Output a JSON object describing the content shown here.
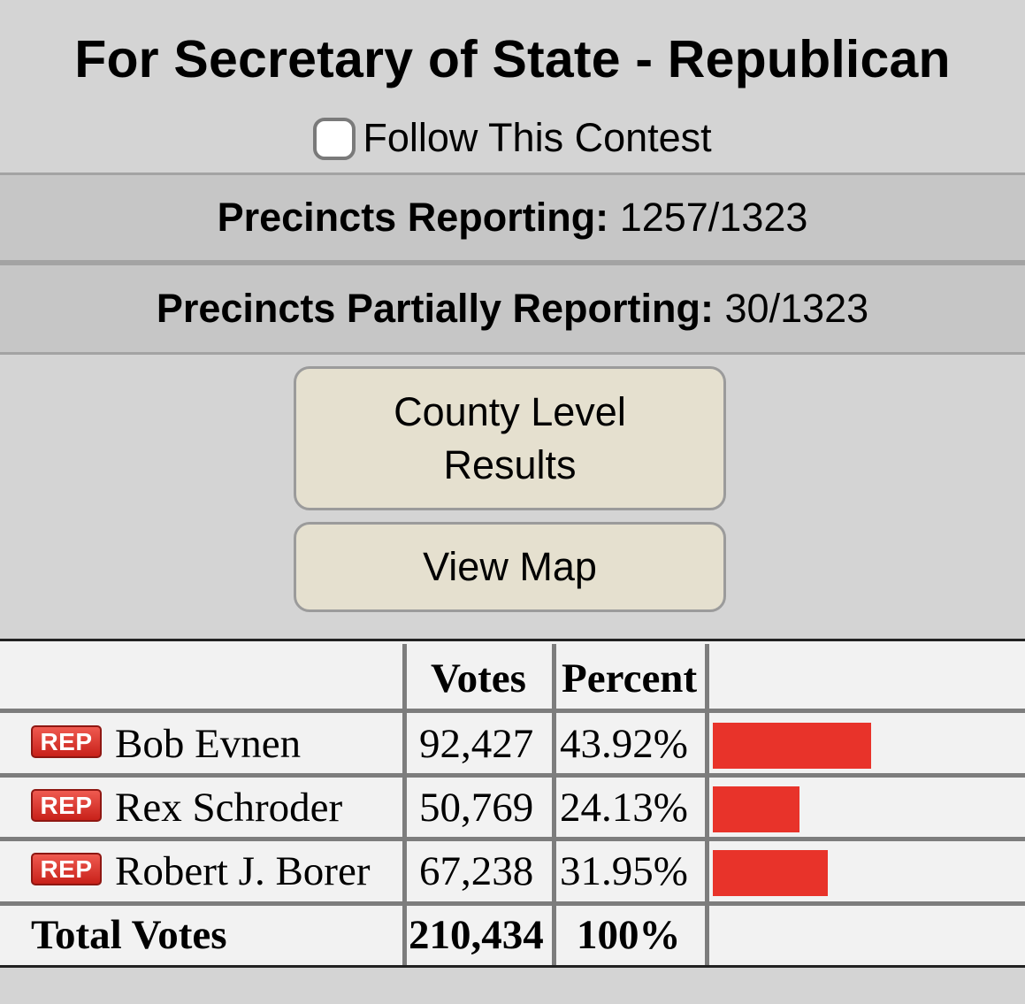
{
  "contest": {
    "title": "For Secretary of State - Republican",
    "follow_label": "Follow This Contest",
    "follow_checked": false
  },
  "precincts": {
    "reporting_label": "Precincts Reporting:",
    "reporting_value": "1257/1323",
    "partial_label": "Precincts Partially Reporting:",
    "partial_value": "30/1323"
  },
  "buttons": {
    "county_results": "County Level Results",
    "view_map": "View Map"
  },
  "results_table": {
    "headers": {
      "candidate": "",
      "votes": "Votes",
      "percent": "Percent"
    },
    "rows": [
      {
        "party": "REP",
        "candidate": "Bob Evnen",
        "votes": "92,427",
        "percent": "43.92%",
        "share": 0.4392
      },
      {
        "party": "REP",
        "candidate": "Rex Schroder",
        "votes": "50,769",
        "percent": "24.13%",
        "share": 0.2413
      },
      {
        "party": "REP",
        "candidate": "Robert J. Borer",
        "votes": "67,238",
        "percent": "31.95%",
        "share": 0.3195
      }
    ],
    "total": {
      "label": "Total Votes",
      "votes": "210,434",
      "percent": "100%"
    },
    "bar_color": "#e8332a",
    "party_badge_color": "#d9342b"
  }
}
